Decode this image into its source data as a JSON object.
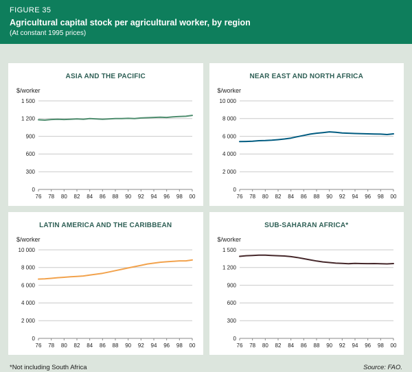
{
  "header": {
    "figure_label": "FIGURE 35",
    "title": "Agricultural capital stock per agricultural worker, by region",
    "subtitle": "(At constant 1995 prices)"
  },
  "footer": {
    "note": "*Not including South Africa",
    "source": "Source: FAO."
  },
  "colors": {
    "header_bg": "#0e7e5c",
    "page_bg": "#dce5dd",
    "panel_title": "#2e5f55",
    "grid": "#c9c9c9",
    "axis": "#8a8a8a",
    "tick_text": "#222222"
  },
  "chart_data": [
    {
      "type": "line",
      "title": "ASIA AND THE PACIFIC",
      "ylabel": "$/worker",
      "ylim": [
        0,
        1500
      ],
      "ytick_values": [
        0,
        300,
        600,
        900,
        1200,
        1500
      ],
      "ytick_labels": [
        "0",
        "300",
        "600",
        "900",
        "1 200",
        "1 500"
      ],
      "xtick_values": [
        1976,
        1978,
        1980,
        1982,
        1984,
        1986,
        1988,
        1990,
        1992,
        1994,
        1996,
        1998,
        2000
      ],
      "xtick_labels": [
        "76",
        "78",
        "80",
        "82",
        "84",
        "86",
        "88",
        "90",
        "92",
        "94",
        "96",
        "98",
        "00"
      ],
      "x": [
        1976,
        1977,
        1978,
        1979,
        1980,
        1981,
        1982,
        1983,
        1984,
        1985,
        1986,
        1987,
        1988,
        1989,
        1990,
        1991,
        1992,
        1993,
        1994,
        1995,
        1996,
        1997,
        1998,
        1999,
        2000
      ],
      "values": [
        1180,
        1175,
        1185,
        1190,
        1185,
        1190,
        1195,
        1190,
        1200,
        1195,
        1190,
        1195,
        1200,
        1200,
        1205,
        1200,
        1210,
        1215,
        1220,
        1225,
        1220,
        1230,
        1235,
        1240,
        1255
      ],
      "color": "#4e8d6e"
    },
    {
      "type": "line",
      "title": "NEAR EAST AND NORTH AFRICA",
      "ylabel": "$/worker",
      "ylim": [
        0,
        10000
      ],
      "ytick_values": [
        0,
        2000,
        4000,
        6000,
        8000,
        10000
      ],
      "ytick_labels": [
        "0",
        "2 000",
        "4 000",
        "6 000",
        "8 000",
        "10 000"
      ],
      "xtick_values": [
        1976,
        1978,
        1980,
        1982,
        1984,
        1986,
        1988,
        1990,
        1992,
        1994,
        1996,
        1998,
        2000
      ],
      "xtick_labels": [
        "76",
        "78",
        "80",
        "82",
        "84",
        "86",
        "88",
        "90",
        "92",
        "94",
        "96",
        "98",
        "00"
      ],
      "x": [
        1976,
        1977,
        1978,
        1979,
        1980,
        1981,
        1982,
        1983,
        1984,
        1985,
        1986,
        1987,
        1988,
        1989,
        1990,
        1991,
        1992,
        1993,
        1994,
        1995,
        1996,
        1997,
        1998,
        1999,
        2000
      ],
      "values": [
        5400,
        5420,
        5450,
        5500,
        5520,
        5560,
        5620,
        5700,
        5800,
        5950,
        6100,
        6250,
        6350,
        6420,
        6500,
        6450,
        6380,
        6350,
        6320,
        6300,
        6280,
        6260,
        6250,
        6200,
        6280
      ],
      "color": "#005b80"
    },
    {
      "type": "line",
      "title": "LATIN AMERICA AND THE CARIBBEAN",
      "ylabel": "$/worker",
      "ylim": [
        0,
        10000
      ],
      "ytick_values": [
        0,
        2000,
        4000,
        6000,
        8000,
        10000
      ],
      "ytick_labels": [
        "0",
        "2 000",
        "4 000",
        "6 000",
        "8 000",
        "10 000"
      ],
      "xtick_values": [
        1976,
        1978,
        1980,
        1982,
        1984,
        1986,
        1988,
        1990,
        1992,
        1994,
        1996,
        1998,
        2000
      ],
      "xtick_labels": [
        "76",
        "78",
        "80",
        "82",
        "84",
        "86",
        "88",
        "90",
        "92",
        "94",
        "96",
        "98",
        "00"
      ],
      "x": [
        1976,
        1977,
        1978,
        1979,
        1980,
        1981,
        1982,
        1983,
        1984,
        1985,
        1986,
        1987,
        1988,
        1989,
        1990,
        1991,
        1992,
        1993,
        1994,
        1995,
        1996,
        1997,
        1998,
        1999,
        2000
      ],
      "values": [
        6700,
        6720,
        6780,
        6850,
        6900,
        6950,
        7000,
        7050,
        7150,
        7250,
        7350,
        7500,
        7650,
        7800,
        7950,
        8100,
        8250,
        8400,
        8500,
        8600,
        8650,
        8700,
        8750,
        8750,
        8850
      ],
      "color": "#f2a24c"
    },
    {
      "type": "line",
      "title": "SUB-SAHARAN AFRICA*",
      "ylabel": "$/worker",
      "ylim": [
        0,
        1500
      ],
      "ytick_values": [
        0,
        300,
        600,
        900,
        1200,
        1500
      ],
      "ytick_labels": [
        "0",
        "300",
        "600",
        "900",
        "1 200",
        "1 500"
      ],
      "xtick_values": [
        1976,
        1978,
        1980,
        1982,
        1984,
        1986,
        1988,
        1990,
        1992,
        1994,
        1996,
        1998,
        2000
      ],
      "xtick_labels": [
        "76",
        "78",
        "80",
        "82",
        "84",
        "86",
        "88",
        "90",
        "92",
        "94",
        "96",
        "98",
        "00"
      ],
      "x": [
        1976,
        1977,
        1978,
        1979,
        1980,
        1981,
        1982,
        1983,
        1984,
        1985,
        1986,
        1987,
        1988,
        1989,
        1990,
        1991,
        1992,
        1993,
        1994,
        1995,
        1996,
        1997,
        1998,
        1999,
        2000
      ],
      "values": [
        1390,
        1400,
        1405,
        1410,
        1410,
        1405,
        1400,
        1395,
        1385,
        1370,
        1350,
        1330,
        1310,
        1295,
        1285,
        1275,
        1270,
        1265,
        1270,
        1268,
        1266,
        1268,
        1265,
        1262,
        1268
      ],
      "color": "#45272a"
    }
  ]
}
